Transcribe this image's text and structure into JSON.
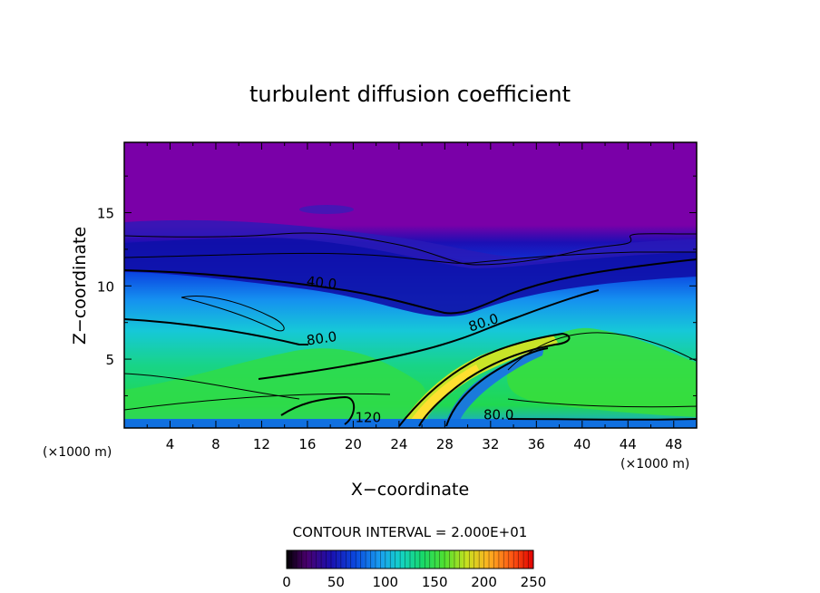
{
  "chart_data": {
    "type": "heatmap",
    "title": "turbulent diffusion coefficient",
    "xlabel": "X−coordinate",
    "ylabel": "Z−coordinate",
    "x_unit_left": "(×1000 m)",
    "x_unit_right": "(×1000 m)",
    "xlim": [
      0,
      50
    ],
    "ylim": [
      0.3,
      19.8
    ],
    "x_ticks": [
      4,
      8,
      12,
      16,
      20,
      24,
      28,
      32,
      36,
      40,
      44,
      48
    ],
    "y_ticks": [
      5,
      10,
      15
    ],
    "contour_interval_text": "CONTOUR INTERVAL = 2.000E+01",
    "colorbar": {
      "min": 0,
      "max": 250,
      "ticks": [
        0,
        50,
        100,
        150,
        200,
        250
      ]
    },
    "contour_labels": [
      {
        "text": "40.0",
        "x": 17.2,
        "y": 9.9,
        "angle": 6
      },
      {
        "text": "80.0",
        "x": 17.3,
        "y": 6.1,
        "angle": -8
      },
      {
        "text": "80.0",
        "x": 31.5,
        "y": 7.2,
        "angle": -18
      },
      {
        "text": "120",
        "x": 21.3,
        "y": 0.7,
        "angle": 0
      },
      {
        "text": "80.0",
        "x": 32.7,
        "y": 0.9,
        "angle": 0
      }
    ]
  }
}
